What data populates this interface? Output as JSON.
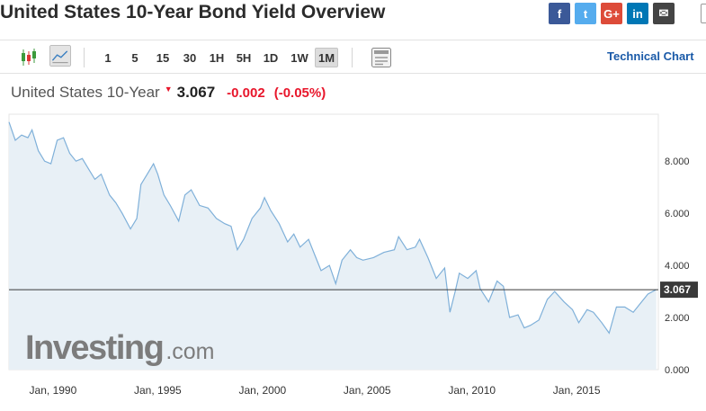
{
  "page": {
    "title": "United States 10-Year Bond Yield Overview"
  },
  "social": [
    {
      "id": "facebook",
      "label": "f",
      "color": "#3b5998"
    },
    {
      "id": "twitter",
      "label": "t",
      "color": "#55acee"
    },
    {
      "id": "google-plus",
      "label": "G+",
      "color": "#dd4b39"
    },
    {
      "id": "linkedin",
      "label": "in",
      "color": "#0077b5"
    },
    {
      "id": "email",
      "label": "✉",
      "color": "#444444"
    }
  ],
  "toolbar": {
    "chart_type_icons": [
      "candlestick-icon",
      "area-chart-icon"
    ],
    "intervals": [
      "1",
      "5",
      "15",
      "30",
      "1H",
      "5H",
      "1D",
      "1W",
      "1M"
    ],
    "active_interval": "1M",
    "settings_icon": "panel-icon",
    "technical_chart_label": "Technical Chart"
  },
  "quote": {
    "name": "United States 10-Year",
    "direction_icon": "down-arrow-icon",
    "price": "3.067",
    "change": "-0.002",
    "change_pct": "(-0.05%)"
  },
  "watermark": {
    "brand": "Investing",
    "suffix": ".com"
  },
  "colors": {
    "line": "#7fb0d9",
    "fill": "#e8f0f6",
    "negative": "#e8162b",
    "link": "#1a5aa8"
  },
  "chart_data": {
    "type": "area",
    "title": "",
    "xlabel": "",
    "ylabel": "",
    "x_tick_labels": [
      "Jan, 1990",
      "Jan, 1995",
      "Jan, 2000",
      "Jan, 2005",
      "Jan, 2010",
      "Jan, 2015"
    ],
    "y_tick_labels": [
      "0.000",
      "2.000",
      "4.000",
      "6.000",
      "8.000"
    ],
    "ylim": [
      0,
      9.8
    ],
    "xlim": [
      1987.9,
      2018.9
    ],
    "grid": false,
    "current_value_line": 3.067,
    "current_value_label": "3.067",
    "series": [
      {
        "x": [
          1987.9,
          1988.2,
          1988.5,
          1988.8,
          1989.0,
          1989.3,
          1989.6,
          1989.9,
          1990.2,
          1990.5,
          1990.8,
          1991.1,
          1991.4,
          1991.7,
          1992.0,
          1992.3,
          1992.7,
          1993.0,
          1993.3,
          1993.7,
          1994.0,
          1994.2,
          1994.5,
          1994.8,
          1995.0,
          1995.3,
          1995.6,
          1996.0,
          1996.3,
          1996.6,
          1997.0,
          1997.4,
          1997.8,
          1998.2,
          1998.5,
          1998.8,
          1999.1,
          1999.5,
          1999.9,
          2000.1,
          2000.4,
          2000.8,
          2001.2,
          2001.5,
          2001.8,
          2002.2,
          2002.5,
          2002.8,
          2003.2,
          2003.5,
          2003.8,
          2004.2,
          2004.5,
          2004.8,
          2005.3,
          2005.8,
          2006.3,
          2006.5,
          2006.9,
          2007.3,
          2007.5,
          2007.9,
          2008.3,
          2008.7,
          2008.95,
          2009.2,
          2009.4,
          2009.8,
          2010.2,
          2010.4,
          2010.8,
          2011.2,
          2011.5,
          2011.8,
          2012.2,
          2012.5,
          2012.8,
          2013.2,
          2013.6,
          2013.95,
          2014.4,
          2014.8,
          2015.1,
          2015.5,
          2015.8,
          2016.2,
          2016.55,
          2016.9,
          2017.3,
          2017.7,
          2018.0,
          2018.4,
          2018.8
        ],
        "y": [
          9.5,
          8.8,
          9.0,
          8.9,
          9.2,
          8.4,
          8.0,
          7.9,
          8.8,
          8.9,
          8.3,
          8.0,
          8.1,
          7.7,
          7.3,
          7.5,
          6.7,
          6.4,
          6.0,
          5.4,
          5.8,
          7.1,
          7.5,
          7.9,
          7.5,
          6.7,
          6.3,
          5.7,
          6.7,
          6.9,
          6.3,
          6.2,
          5.8,
          5.6,
          5.5,
          4.6,
          5.0,
          5.8,
          6.2,
          6.6,
          6.1,
          5.6,
          4.9,
          5.2,
          4.7,
          5.0,
          4.4,
          3.8,
          4.0,
          3.3,
          4.2,
          4.6,
          4.3,
          4.2,
          4.3,
          4.5,
          4.6,
          5.1,
          4.6,
          4.7,
          5.0,
          4.3,
          3.5,
          3.9,
          2.2,
          3.0,
          3.7,
          3.5,
          3.8,
          3.1,
          2.6,
          3.4,
          3.2,
          2.0,
          2.1,
          1.6,
          1.7,
          1.9,
          2.7,
          3.0,
          2.6,
          2.3,
          1.8,
          2.3,
          2.2,
          1.8,
          1.4,
          2.4,
          2.4,
          2.2,
          2.5,
          2.9,
          3.07
        ]
      }
    ]
  }
}
